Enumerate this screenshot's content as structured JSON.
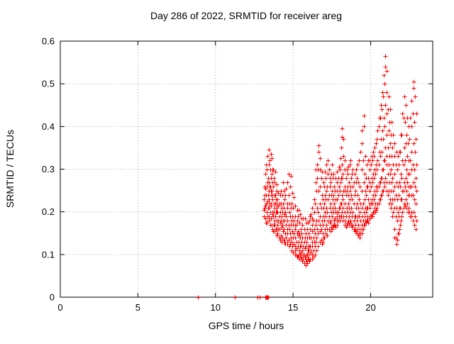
{
  "chart_data": {
    "type": "scatter",
    "title": "Day 286 of 2022, SRMTID for receiver areg",
    "xlabel": "GPS time / hours",
    "ylabel": "SRMTID / TECUs",
    "xlim": [
      0,
      24
    ],
    "ylim": [
      0,
      0.6
    ],
    "xtick_values": [
      0,
      5,
      10,
      15,
      20
    ],
    "xtick_labels": [
      "0",
      "5",
      "10",
      "15",
      "20"
    ],
    "ytick_values": [
      0,
      0.1,
      0.2,
      0.3,
      0.4,
      0.5,
      0.6
    ],
    "ytick_labels": [
      "0",
      "0.1",
      "0.2",
      "0.3",
      "0.4",
      "0.5",
      "0.6"
    ],
    "grid": true,
    "grid_color": "#aaaaaa",
    "marker": {
      "shape": "plus",
      "color": "#ff0000",
      "size": 7
    },
    "zero_time_points": [
      8.88,
      11.26,
      12.72,
      12.86,
      13.2,
      13.23,
      13.26,
      13.29,
      13.32,
      13.35,
      13.38,
      13.41
    ],
    "columns": [
      [
        13.13,
        0.19,
        0.23,
        0.205
      ],
      [
        13.17,
        0.24,
        0.21,
        0.26
      ],
      [
        13.22,
        0.215,
        0.185,
        0.255,
        0.29
      ],
      [
        13.27,
        0.22,
        0.175,
        0.31,
        0.24
      ],
      [
        13.32,
        0.2,
        0.26,
        0.175,
        0.3
      ],
      [
        13.36,
        0.225,
        0.33,
        0.19,
        0.27
      ],
      [
        13.39,
        0.21,
        0.24,
        0.28
      ],
      [
        13.42,
        0.23,
        0.31,
        0.18,
        0.27
      ],
      [
        13.46,
        0.345,
        0.21,
        0.25,
        0.19
      ],
      [
        13.49,
        0.32,
        0.22,
        0.26
      ],
      [
        13.52,
        0.26,
        0.2,
        0.3,
        0.17
      ],
      [
        13.56,
        0.24,
        0.335,
        0.215,
        0.28
      ],
      [
        13.59,
        0.185,
        0.25,
        0.22
      ],
      [
        13.62,
        0.29,
        0.17,
        0.25,
        0.325
      ],
      [
        13.66,
        0.195,
        0.27,
        0.16,
        0.23
      ],
      [
        13.69,
        0.3,
        0.24,
        0.2
      ],
      [
        13.72,
        0.19,
        0.26,
        0.155,
        0.3
      ],
      [
        13.76,
        0.22,
        0.17,
        0.28,
        0.2
      ],
      [
        13.79,
        0.24,
        0.21,
        0.18
      ],
      [
        13.82,
        0.21,
        0.17,
        0.27,
        0.155
      ],
      [
        13.86,
        0.24,
        0.295,
        0.19,
        0.22
      ],
      [
        13.89,
        0.16,
        0.2,
        0.23
      ],
      [
        13.92,
        0.2,
        0.25,
        0.16,
        0.22
      ],
      [
        13.96,
        0.145,
        0.265,
        0.18,
        0.21
      ],
      [
        14.01,
        0.17,
        0.23,
        0.15,
        0.2
      ],
      [
        14.05,
        0.245,
        0.16,
        0.215,
        0.18
      ],
      [
        14.11,
        0.19,
        0.14,
        0.22,
        0.16
      ],
      [
        14.15,
        0.24,
        0.175,
        0.2,
        0.135
      ],
      [
        14.21,
        0.18,
        0.22,
        0.145,
        0.25
      ],
      [
        14.25,
        0.165,
        0.19,
        0.21,
        0.13
      ],
      [
        14.31,
        0.17,
        0.24,
        0.14,
        0.2
      ],
      [
        14.35,
        0.27,
        0.155,
        0.22,
        0.18
      ],
      [
        14.41,
        0.16,
        0.21,
        0.135,
        0.25
      ],
      [
        14.45,
        0.18,
        0.13,
        0.23,
        0.195
      ],
      [
        14.51,
        0.15,
        0.2,
        0.125,
        0.24
      ],
      [
        14.55,
        0.17,
        0.255,
        0.14,
        0.19
      ],
      [
        14.61,
        0.16,
        0.22,
        0.13,
        0.27
      ],
      [
        14.65,
        0.18,
        0.125,
        0.21,
        0.15
      ],
      [
        14.71,
        0.17,
        0.24,
        0.135,
        0.29
      ],
      [
        14.75,
        0.16,
        0.2,
        0.12,
        0.22
      ],
      [
        14.81,
        0.15,
        0.19,
        0.125,
        0.26
      ],
      [
        14.85,
        0.17,
        0.285,
        0.14,
        0.21
      ],
      [
        14.91,
        0.13,
        0.18,
        0.11,
        0.22
      ],
      [
        14.95,
        0.155,
        0.245,
        0.12,
        0.19
      ],
      [
        15.01,
        0.14,
        0.17,
        0.105,
        0.21
      ],
      [
        15.05,
        0.125,
        0.235,
        0.15,
        0.18
      ],
      [
        15.11,
        0.12,
        0.16,
        0.1,
        0.19
      ],
      [
        15.15,
        0.14,
        0.215,
        0.11,
        0.17
      ],
      [
        15.21,
        0.13,
        0.1,
        0.17,
        0.115
      ],
      [
        15.25,
        0.205,
        0.15,
        0.095,
        0.18
      ],
      [
        15.31,
        0.12,
        0.155,
        0.095,
        0.19
      ],
      [
        15.35,
        0.13,
        0.1,
        0.205,
        0.145
      ],
      [
        15.41,
        0.11,
        0.15,
        0.09,
        0.175
      ],
      [
        15.45,
        0.12,
        0.195,
        0.1,
        0.14
      ],
      [
        15.51,
        0.12,
        0.09,
        0.16,
        0.105
      ],
      [
        15.55,
        0.185,
        0.13,
        0.095,
        0.15
      ],
      [
        15.61,
        0.11,
        0.14,
        0.085,
        0.17
      ],
      [
        15.65,
        0.1,
        0.185,
        0.12,
        0.09
      ],
      [
        15.71,
        0.1,
        0.13,
        0.08,
        0.16
      ],
      [
        15.75,
        0.115,
        0.185,
        0.095,
        0.14
      ],
      [
        15.81,
        0.09,
        0.12,
        0.075,
        0.15
      ],
      [
        15.85,
        0.1,
        0.175,
        0.085,
        0.13
      ],
      [
        15.91,
        0.1,
        0.14,
        0.08,
        0.16
      ],
      [
        15.95,
        0.11,
        0.175,
        0.09,
        0.12
      ],
      [
        16.01,
        0.11,
        0.09,
        0.15,
        0.1
      ],
      [
        16.05,
        0.18,
        0.12,
        0.085,
        0.14
      ],
      [
        16.11,
        0.12,
        0.16,
        0.09,
        0.19
      ],
      [
        16.15,
        0.105,
        0.14,
        0.195,
        0.11
      ],
      [
        16.21,
        0.13,
        0.1,
        0.17,
        0.09
      ],
      [
        16.25,
        0.21,
        0.12,
        0.155,
        0.185
      ],
      [
        16.31,
        0.14,
        0.11,
        0.18,
        0.095
      ],
      [
        16.35,
        0.23,
        0.13,
        0.2,
        0.16
      ],
      [
        16.41,
        0.15,
        0.12,
        0.22,
        0.1
      ],
      [
        16.45,
        0.27,
        0.17,
        0.3,
        0.13
      ],
      [
        16.51,
        0.18,
        0.14,
        0.25,
        0.11
      ],
      [
        16.55,
        0.31,
        0.16,
        0.21,
        0.28
      ],
      [
        16.61,
        0.2,
        0.15,
        0.3,
        0.12
      ],
      [
        16.65,
        0.355,
        0.18,
        0.25,
        0.34
      ],
      [
        16.71,
        0.17,
        0.22,
        0.13,
        0.3
      ],
      [
        16.75,
        0.155,
        0.325,
        0.19,
        0.26
      ],
      [
        16.81,
        0.16,
        0.21,
        0.135,
        0.28
      ],
      [
        16.85,
        0.18,
        0.24,
        0.125,
        0.295
      ],
      [
        16.91,
        0.17,
        0.13,
        0.23,
        0.15
      ],
      [
        16.95,
        0.27,
        0.19,
        0.21,
        0.14
      ],
      [
        17.01,
        0.18,
        0.22,
        0.14,
        0.26
      ],
      [
        17.05,
        0.16,
        0.295,
        0.2,
        0.24
      ],
      [
        17.11,
        0.19,
        0.23,
        0.15,
        0.28
      ],
      [
        17.15,
        0.17,
        0.31,
        0.21,
        0.25
      ],
      [
        17.21,
        0.2,
        0.16,
        0.26,
        0.145
      ],
      [
        17.25,
        0.32,
        0.18,
        0.23,
        0.29
      ],
      [
        17.31,
        0.19,
        0.24,
        0.16,
        0.3
      ],
      [
        17.35,
        0.175,
        0.26,
        0.21,
        0.28
      ],
      [
        17.41,
        0.18,
        0.22,
        0.155,
        0.27
      ],
      [
        17.45,
        0.2,
        0.29,
        0.165,
        0.24
      ],
      [
        17.51,
        0.19,
        0.25,
        0.16,
        0.31
      ],
      [
        17.55,
        0.21,
        0.17,
        0.28,
        0.23
      ],
      [
        17.61,
        0.2,
        0.24,
        0.165,
        0.29
      ],
      [
        17.65,
        0.18,
        0.26,
        0.22,
        0.17
      ],
      [
        17.71,
        0.21,
        0.17,
        0.25,
        0.185
      ],
      [
        17.75,
        0.28,
        0.2,
        0.23,
        0.165
      ],
      [
        17.81,
        0.19,
        0.23,
        0.17,
        0.27
      ],
      [
        17.85,
        0.2,
        0.295,
        0.18,
        0.25
      ],
      [
        17.91,
        0.2,
        0.24,
        0.18,
        0.28
      ],
      [
        17.95,
        0.21,
        0.305,
        0.19,
        0.26
      ],
      [
        18.01,
        0.21,
        0.25,
        0.18,
        0.3
      ],
      [
        18.05,
        0.22,
        0.325,
        0.19,
        0.27
      ],
      [
        18.11,
        0.22,
        0.28,
        0.19,
        0.35
      ],
      [
        18.14,
        0.24,
        0.395,
        0.31
      ],
      [
        18.17,
        0.2,
        0.375,
        0.28
      ],
      [
        18.21,
        0.23,
        0.18,
        0.29,
        0.21
      ],
      [
        18.25,
        0.37,
        0.25,
        0.19,
        0.33
      ],
      [
        18.31,
        0.2,
        0.25,
        0.17,
        0.3
      ],
      [
        18.35,
        0.22,
        0.32,
        0.18,
        0.26
      ],
      [
        18.41,
        0.19,
        0.24,
        0.165,
        0.28
      ],
      [
        18.45,
        0.21,
        0.3,
        0.17,
        0.25
      ],
      [
        18.51,
        0.2,
        0.26,
        0.175,
        0.29
      ],
      [
        18.55,
        0.22,
        0.305,
        0.18,
        0.24
      ],
      [
        18.61,
        0.21,
        0.17,
        0.27,
        0.19
      ],
      [
        18.65,
        0.31,
        0.23,
        0.175,
        0.25
      ],
      [
        18.71,
        0.2,
        0.26,
        0.18,
        0.32
      ],
      [
        18.75,
        0.21,
        0.28,
        0.17,
        0.24
      ],
      [
        18.81,
        0.19,
        0.23,
        0.165,
        0.29
      ],
      [
        18.85,
        0.2,
        0.3,
        0.17,
        0.26
      ],
      [
        18.91,
        0.18,
        0.22,
        0.16,
        0.27
      ],
      [
        18.95,
        0.19,
        0.29,
        0.155,
        0.24
      ],
      [
        19.01,
        0.19,
        0.16,
        0.25,
        0.17
      ],
      [
        19.05,
        0.3,
        0.21,
        0.155,
        0.27
      ],
      [
        19.11,
        0.18,
        0.22,
        0.15,
        0.28
      ],
      [
        19.15,
        0.19,
        0.31,
        0.16,
        0.24
      ],
      [
        19.21,
        0.17,
        0.21,
        0.145,
        0.27
      ],
      [
        19.25,
        0.19,
        0.32,
        0.15,
        0.23
      ],
      [
        19.31,
        0.16,
        0.2,
        0.14,
        0.26
      ],
      [
        19.35,
        0.18,
        0.34,
        0.15,
        0.22
      ],
      [
        19.41,
        0.17,
        0.21,
        0.15,
        0.3
      ],
      [
        19.45,
        0.19,
        0.39,
        0.16,
        0.25,
        0.36
      ],
      [
        19.51,
        0.18,
        0.22,
        0.16,
        0.32
      ],
      [
        19.55,
        0.2,
        0.425,
        0.17,
        0.27,
        0.4
      ],
      [
        19.61,
        0.19,
        0.23,
        0.17,
        0.29
      ],
      [
        19.65,
        0.21,
        0.33,
        0.18,
        0.25
      ],
      [
        19.71,
        0.2,
        0.24,
        0.175,
        0.28
      ],
      [
        19.75,
        0.21,
        0.31,
        0.18,
        0.26
      ],
      [
        19.81,
        0.21,
        0.18,
        0.26,
        0.19
      ],
      [
        19.85,
        0.32,
        0.23,
        0.175,
        0.28
      ],
      [
        19.91,
        0.21,
        0.25,
        0.185,
        0.3
      ],
      [
        19.95,
        0.22,
        0.32,
        0.19,
        0.27
      ],
      [
        20.01,
        0.22,
        0.26,
        0.19,
        0.31
      ],
      [
        20.05,
        0.23,
        0.33,
        0.195,
        0.28
      ],
      [
        20.11,
        0.22,
        0.27,
        0.19,
        0.32
      ],
      [
        20.15,
        0.24,
        0.34,
        0.2,
        0.29
      ],
      [
        20.21,
        0.23,
        0.28,
        0.2,
        0.33
      ],
      [
        20.25,
        0.25,
        0.35,
        0.21,
        0.3
      ],
      [
        20.31,
        0.24,
        0.2,
        0.29,
        0.22
      ],
      [
        20.35,
        0.36,
        0.26,
        0.205,
        0.31
      ],
      [
        20.41,
        0.25,
        0.3,
        0.21,
        0.37
      ],
      [
        20.45,
        0.26,
        0.39,
        0.22,
        0.32
      ],
      [
        20.51,
        0.26,
        0.31,
        0.22,
        0.4
      ],
      [
        20.55,
        0.27,
        0.42,
        0.23,
        0.34
      ],
      [
        20.61,
        0.27,
        0.33,
        0.23,
        0.42
      ],
      [
        20.65,
        0.28,
        0.45,
        0.24,
        0.37
      ],
      [
        20.71,
        0.28,
        0.34,
        0.24,
        0.44
      ],
      [
        20.75,
        0.3,
        0.48,
        0.25,
        0.39
      ],
      [
        20.81,
        0.3,
        0.37,
        0.25,
        0.47
      ],
      [
        20.85,
        0.32,
        0.52,
        0.27,
        0.42
      ],
      [
        20.91,
        0.32,
        0.4,
        0.26,
        0.5
      ],
      [
        20.95,
        0.35,
        0.565,
        0.28,
        0.45,
        0.54
      ],
      [
        21.01,
        0.31,
        0.38,
        0.25,
        0.48
      ],
      [
        21.05,
        0.33,
        0.53,
        0.27,
        0.43
      ],
      [
        21.11,
        0.29,
        0.35,
        0.24,
        0.44
      ],
      [
        21.15,
        0.31,
        0.47,
        0.25,
        0.39
      ],
      [
        21.21,
        0.27,
        0.33,
        0.22,
        0.41
      ],
      [
        21.25,
        0.29,
        0.44,
        0.23,
        0.36
      ],
      [
        21.31,
        0.25,
        0.3,
        0.21,
        0.38
      ],
      [
        21.35,
        0.27,
        0.41,
        0.22,
        0.33
      ],
      [
        21.41,
        0.23,
        0.28,
        0.19,
        0.35
      ],
      [
        21.45,
        0.25,
        0.38,
        0.2,
        0.31
      ],
      [
        21.51,
        0.21,
        0.26,
        0.16,
        0.33
      ],
      [
        21.55,
        0.23,
        0.36,
        0.14,
        0.29
      ],
      [
        21.61,
        0.19,
        0.24,
        0.14,
        0.31
      ],
      [
        21.65,
        0.21,
        0.34,
        0.125,
        0.27
      ],
      [
        21.71,
        0.18,
        0.23,
        0.135,
        0.3
      ],
      [
        21.75,
        0.2,
        0.33,
        0.15,
        0.26
      ],
      [
        21.81,
        0.19,
        0.24,
        0.15,
        0.31
      ],
      [
        21.85,
        0.21,
        0.34,
        0.16,
        0.27
      ],
      [
        21.91,
        0.21,
        0.26,
        0.17,
        0.34
      ],
      [
        21.95,
        0.23,
        0.38,
        0.18,
        0.29
      ],
      [
        22.01,
        0.23,
        0.28,
        0.19,
        0.38
      ],
      [
        22.05,
        0.25,
        0.43,
        0.2,
        0.32
      ],
      [
        22.11,
        0.25,
        0.31,
        0.21,
        0.42
      ],
      [
        22.15,
        0.27,
        0.47,
        0.22,
        0.35
      ],
      [
        22.21,
        0.26,
        0.32,
        0.215,
        0.41
      ],
      [
        22.25,
        0.28,
        0.45,
        0.23,
        0.36
      ],
      [
        22.31,
        0.25,
        0.3,
        0.21,
        0.38
      ],
      [
        22.35,
        0.27,
        0.42,
        0.22,
        0.33
      ],
      [
        22.41,
        0.24,
        0.29,
        0.2,
        0.36
      ],
      [
        22.45,
        0.26,
        0.4,
        0.21,
        0.32
      ],
      [
        22.51,
        0.24,
        0.29,
        0.2,
        0.37
      ],
      [
        22.55,
        0.26,
        0.42,
        0.19,
        0.32
      ],
      [
        22.61,
        0.24,
        0.3,
        0.19,
        0.4
      ],
      [
        22.65,
        0.26,
        0.46,
        0.2,
        0.34
      ],
      [
        22.71,
        0.24,
        0.31,
        0.18,
        0.43
      ],
      [
        22.75,
        0.27,
        0.49,
        0.2,
        0.36,
        0.505
      ],
      [
        22.81,
        0.23,
        0.3,
        0.17,
        0.41
      ],
      [
        22.85,
        0.26,
        0.47,
        0.19,
        0.34
      ],
      [
        22.91,
        0.22,
        0.28,
        0.16,
        0.37
      ],
      [
        22.95,
        0.25,
        0.43,
        0.18,
        0.31
      ]
    ]
  }
}
